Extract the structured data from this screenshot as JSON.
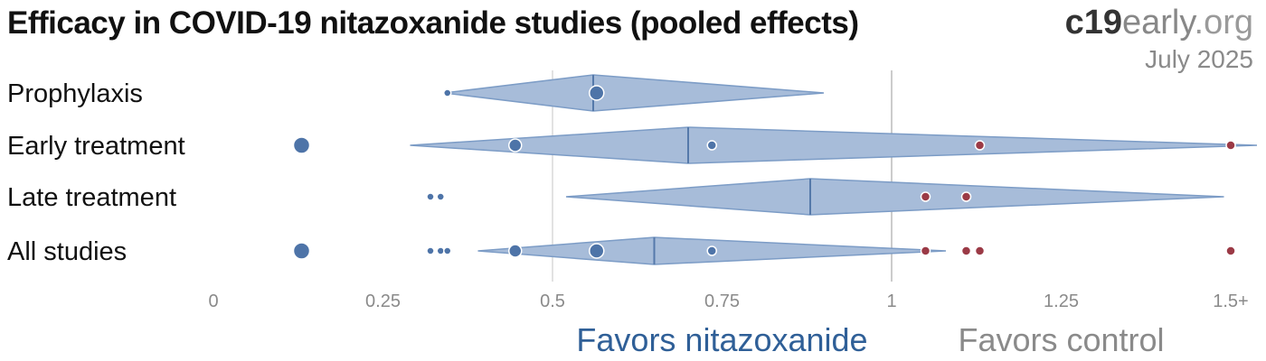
{
  "header": {
    "title": "Efficacy in COVID-19 nitazoxanide studies (pooled effects)",
    "brand_part1": "c19",
    "brand_part2": "early",
    "brand_part3": ".org",
    "date": "July 2025"
  },
  "colors": {
    "diamond_fill": "#a7bcd9",
    "diamond_stroke": "#7c9cc6",
    "center_line": "#5579aa",
    "favorable_dot": "#4e74a8",
    "unfavorable_dot": "#9b3a46",
    "favors_treatment_text": "#2f5f97",
    "favors_control_text": "#8a8a8a",
    "reference_line": "#cccccc",
    "half_line": "#e2e2e2"
  },
  "chart_data": {
    "type": "forest",
    "xlim": [
      0,
      1.5
    ],
    "ticks": [
      0,
      0.25,
      0.5,
      0.75,
      1,
      1.25,
      1.5
    ],
    "tick_labels": [
      "0",
      "0.25",
      "0.5",
      "0.75",
      "1",
      "1.25",
      "1.5+"
    ],
    "reference_value": 1,
    "favors_left": "Favors nitazoxanide",
    "favors_right": "Favors control",
    "rows": [
      {
        "label": "Prophylaxis",
        "estimate": 0.56,
        "ci_low": 0.34,
        "ci_high": 0.9,
        "studies": [
          {
            "x": 0.345,
            "size": 4
          },
          {
            "x": 0.565,
            "size": 8
          }
        ]
      },
      {
        "label": "Early treatment",
        "estimate": 0.7,
        "ci_low": 0.29,
        "ci_high": 1.68,
        "studies": [
          {
            "x": 0.13,
            "size": 9
          },
          {
            "x": 0.445,
            "size": 7
          },
          {
            "x": 0.735,
            "size": 5
          },
          {
            "x": 1.13,
            "size": 5
          },
          {
            "x": 1.5,
            "size": 5
          }
        ]
      },
      {
        "label": "Late treatment",
        "estimate": 0.88,
        "ci_low": 0.52,
        "ci_high": 1.49,
        "studies": [
          {
            "x": 0.32,
            "size": 4
          },
          {
            "x": 0.335,
            "size": 4
          },
          {
            "x": 1.05,
            "size": 5
          },
          {
            "x": 1.11,
            "size": 5
          }
        ]
      },
      {
        "label": "All studies",
        "estimate": 0.65,
        "ci_low": 0.39,
        "ci_high": 1.08,
        "studies": [
          {
            "x": 0.13,
            "size": 9
          },
          {
            "x": 0.32,
            "size": 4
          },
          {
            "x": 0.335,
            "size": 4
          },
          {
            "x": 0.345,
            "size": 4
          },
          {
            "x": 0.445,
            "size": 7
          },
          {
            "x": 0.565,
            "size": 8
          },
          {
            "x": 0.735,
            "size": 5
          },
          {
            "x": 1.05,
            "size": 5
          },
          {
            "x": 1.11,
            "size": 5
          },
          {
            "x": 1.13,
            "size": 5
          },
          {
            "x": 1.5,
            "size": 5
          }
        ]
      }
    ]
  }
}
